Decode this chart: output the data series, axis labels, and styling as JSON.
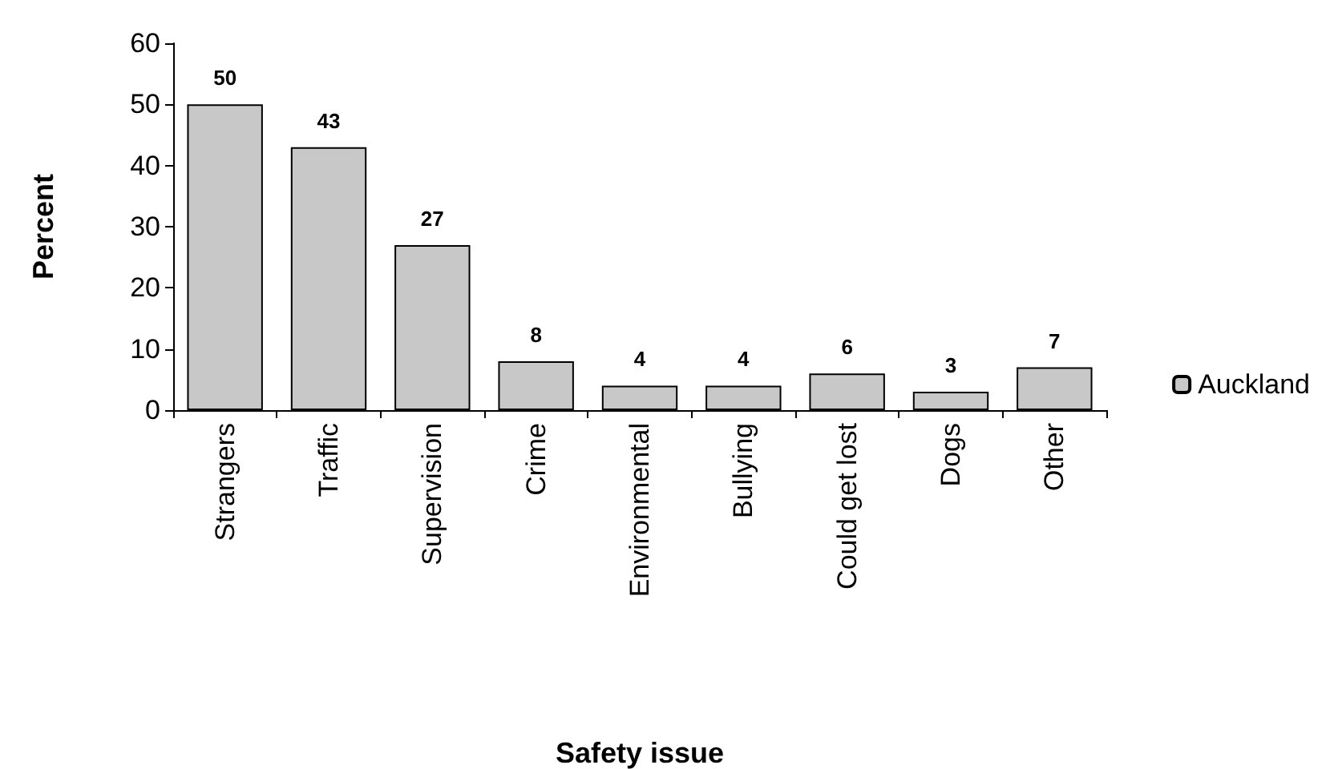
{
  "chart_data": {
    "type": "bar",
    "xlabel": "Safety issue",
    "ylabel": "Percent",
    "categories": [
      "Strangers",
      "Traffic",
      "Supervision",
      "Crime",
      "Environmental",
      "Bullying",
      "Could get lost",
      "Dogs",
      "Other"
    ],
    "series": [
      {
        "name": "Auckland",
        "color": "#c8c8c8",
        "values": [
          50,
          43,
          27,
          8,
          4,
          4,
          6,
          3,
          7
        ]
      }
    ],
    "ylim": [
      0,
      60
    ],
    "yticks": [
      0,
      10,
      20,
      30,
      40,
      50,
      60
    ],
    "grid": false,
    "legend": "right",
    "data_labels": true
  }
}
